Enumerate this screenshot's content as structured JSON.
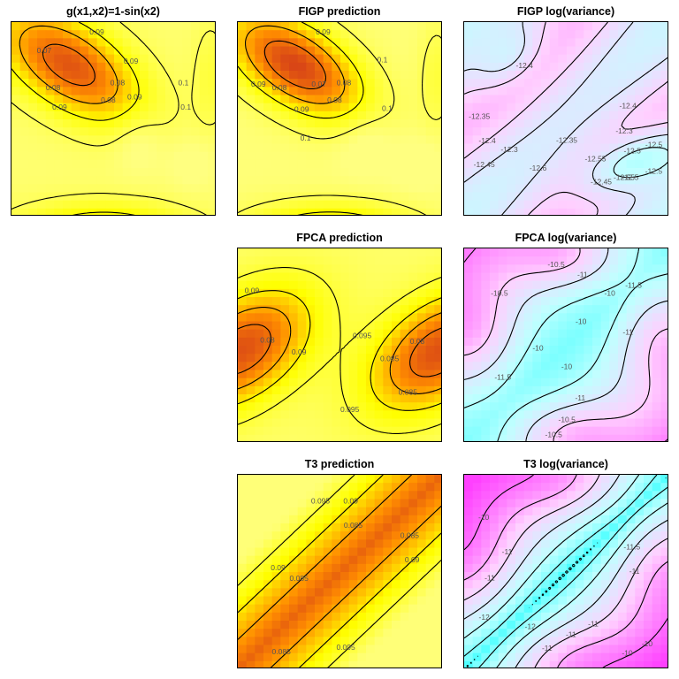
{
  "colors": {
    "pred_low": "#d23a1a",
    "pred_mid": "#ff8c00",
    "pred_high": "#ffff00",
    "pred_top": "#ffff80",
    "var_high": "#ff40ff",
    "var_mid": "#ffd0ff",
    "var_low": "#c0ffff",
    "var_bottom": "#40ffff",
    "contour": "#000000",
    "label": "#666666"
  },
  "chart_data": [
    {
      "id": "g-true",
      "type": "heatmap",
      "title": "g(x1,x2)=1-sin(x2)",
      "palette": "pred",
      "range": [
        0.06,
        0.105
      ],
      "contour_levels": [
        0.07,
        0.08,
        0.09,
        0.1
      ],
      "labels": [
        "0.07",
        "0.08",
        "0.08",
        "0.09",
        "0.09",
        "0.1",
        "0.1",
        "0.09",
        "0.08",
        "0.09"
      ]
    },
    {
      "id": "figp-pred",
      "type": "heatmap",
      "title": "FIGP prediction",
      "palette": "pred",
      "range": [
        0.06,
        0.105
      ],
      "contour_levels": [
        0.07,
        0.08,
        0.09,
        0.1
      ],
      "labels": [
        "0.07",
        "0.08",
        "0.08",
        "0.1",
        "0.09",
        "0.1",
        "0.09",
        "0.09",
        "0.08",
        "0.1"
      ]
    },
    {
      "id": "figp-logvar",
      "type": "heatmap",
      "title": "FIGP log(variance)",
      "palette": "var",
      "range": [
        -12.65,
        -12.25
      ],
      "contour_levels": [
        -12.6,
        -12.55,
        -12.5,
        -12.45,
        -12.4,
        -12.35,
        -12.3
      ],
      "labels": [
        "-12.4",
        "-12.5",
        "-12.5",
        "-12.3",
        "-12.45",
        "-12.35",
        "-12.35",
        "-12.3",
        "-12.45",
        "-12.55",
        "-12.5",
        "-12.6",
        "-12.4",
        "-12.55",
        "-12.5",
        "-12.4"
      ]
    },
    {
      "id": "fpca-pred",
      "type": "heatmap",
      "title": "FPCA prediction",
      "palette": "pred",
      "range": [
        0.074,
        0.1
      ],
      "contour_levels": [
        0.08,
        0.085,
        0.09,
        0.095
      ],
      "labels": [
        "0.09",
        "0.095",
        "0.085",
        "0.08",
        "0.08",
        "0.085",
        "0.095",
        "0.09"
      ]
    },
    {
      "id": "fpca-logvar",
      "type": "heatmap",
      "title": "FPCA log(variance)",
      "palette": "var",
      "range": [
        -12.3,
        -9.6
      ],
      "contour_levels": [
        -11.5,
        -11,
        -10.5,
        -10
      ],
      "labels": [
        "-11",
        "-10",
        "-10.5",
        "-10.5",
        "-11.5",
        "-10",
        "-10",
        "-11.5",
        "-10.5",
        "-11",
        "-10.5",
        "-11",
        "-10"
      ]
    },
    {
      "id": "t3-pred",
      "type": "heatmap",
      "title": "T3 prediction",
      "palette": "pred",
      "range": [
        0.075,
        0.1
      ],
      "contour_levels": [
        0.085,
        0.09,
        0.095
      ],
      "labels": [
        "0.085",
        "0.09",
        "0.085",
        "0.095",
        "0.095",
        "0.09",
        "0.085",
        "0.085",
        "0.09"
      ]
    },
    {
      "id": "t3-logvar",
      "type": "heatmap",
      "title": "T3 log(variance)",
      "palette": "var",
      "range": [
        -13.2,
        -9.6
      ],
      "contour_levels": [
        -13,
        -12.5,
        -12,
        -11.5,
        -11,
        -10.5,
        -10
      ],
      "labels": [
        "-11",
        "-11",
        "-11",
        "-11.5",
        "-12",
        "-12",
        "-10",
        "-11",
        "-11",
        "-10",
        "-10",
        "-11"
      ]
    }
  ]
}
